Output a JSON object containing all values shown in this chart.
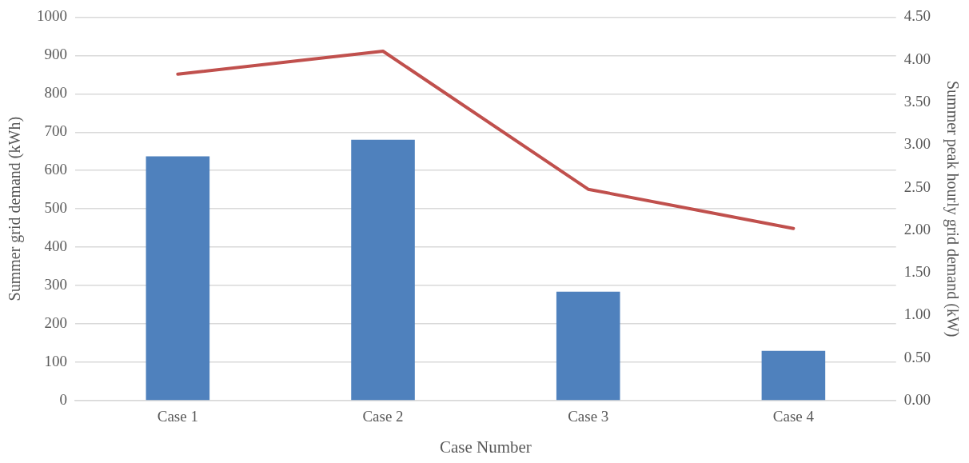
{
  "chart_data": {
    "type": "bar",
    "xlabel": "Case Number",
    "ylabel": "Summer grid demand (kWh)",
    "y2label": "Summer peak hourly grid demand (kW)",
    "categories": [
      "Case 1",
      "Case 2",
      "Case 3",
      "Case 4"
    ],
    "series": [
      {
        "color": "#4f81bd",
        "values": [
          637,
          680,
          284,
          130
        ]
      },
      {
        "type": "line",
        "axis": "y2",
        "color": "#c0504d",
        "values": [
          3.83,
          4.1,
          2.48,
          2.02
        ]
      }
    ],
    "ylim": [
      0,
      1000
    ],
    "yticks": [
      0,
      100,
      200,
      300,
      400,
      500,
      600,
      700,
      800,
      900,
      1000
    ],
    "y2lim": [
      0,
      4.5
    ],
    "y2ticks": [
      {
        "value": 0,
        "label": "0.00"
      },
      {
        "value": 0.5,
        "label": "0.50"
      },
      {
        "value": 1,
        "label": "1.00"
      },
      {
        "value": 1.5,
        "label": "1.50"
      },
      {
        "value": 2,
        "label": "2.00"
      },
      {
        "value": 2.5,
        "label": "2.50"
      },
      {
        "value": 3,
        "label": "3.00"
      },
      {
        "value": 3.5,
        "label": "3.50"
      },
      {
        "value": 4,
        "label": "4.00"
      },
      {
        "value": 4.5,
        "label": "4.50"
      }
    ],
    "grid": "y",
    "legend": false,
    "marker": "none"
  }
}
